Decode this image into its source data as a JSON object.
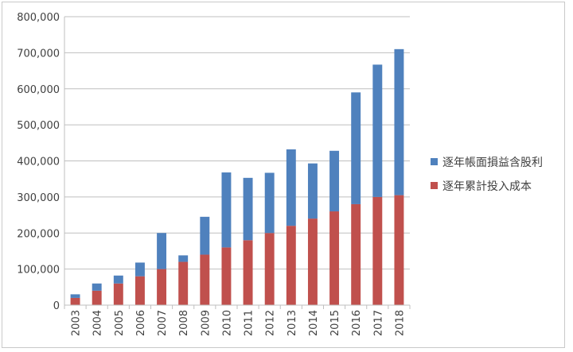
{
  "chart_data": {
    "type": "bar",
    "stacked": true,
    "categories": [
      "2003",
      "2004",
      "2005",
      "2006",
      "2007",
      "2008",
      "2009",
      "2010",
      "2011",
      "2012",
      "2013",
      "2014",
      "2015",
      "2016",
      "2017",
      "2018"
    ],
    "series": [
      {
        "name": "逐年累計投入成本",
        "color": "#c0504d",
        "values": [
          20000,
          40000,
          60000,
          80000,
          100000,
          120000,
          140000,
          160000,
          180000,
          200000,
          220000,
          240000,
          260000,
          280000,
          300000,
          305000
        ]
      },
      {
        "name": "逐年帳面損益含股利",
        "color": "#4f81bd",
        "values": [
          10000,
          20000,
          22000,
          38000,
          100000,
          18000,
          105000,
          208000,
          173000,
          167000,
          212000,
          153000,
          168000,
          310000,
          367000,
          405000
        ]
      }
    ],
    "ylim": [
      0,
      800000
    ],
    "yticks": [
      "0",
      "100,000",
      "200,000",
      "300,000",
      "400,000",
      "500,000",
      "600,000",
      "700,000",
      "800,000"
    ],
    "grid": true,
    "legend_position": "right",
    "legend_order": [
      "逐年帳面損益含股利",
      "逐年累計投入成本"
    ],
    "title": "",
    "xlabel": "",
    "ylabel": ""
  }
}
